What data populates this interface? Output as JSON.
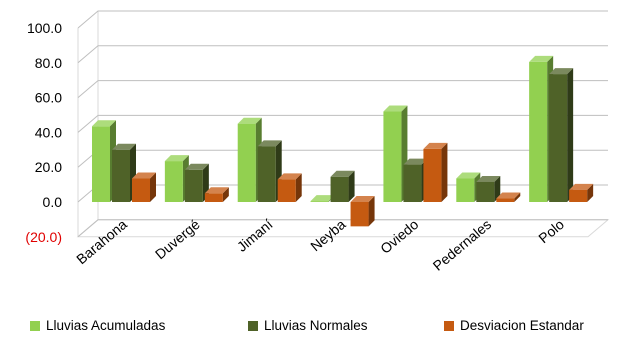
{
  "chart_data": {
    "type": "bar",
    "categories": [
      "Barahona",
      "Duvergé",
      "Jimaní",
      "Neyba",
      "Oviedo",
      "Pedernales",
      "Polo"
    ],
    "series": [
      {
        "name": "Lluvias Acumuladas",
        "values": [
          43.5,
          23.5,
          45.0,
          0.5,
          52.0,
          13.5,
          80.5
        ],
        "color": "#92d050"
      },
      {
        "name": "Lluvias Normales",
        "values": [
          30.0,
          18.5,
          32.0,
          14.5,
          21.5,
          11.5,
          73.5
        ],
        "color": "#4f6228"
      },
      {
        "name": "Desviacion Estandar",
        "values": [
          13.5,
          5.0,
          13.0,
          -14.0,
          30.5,
          2.0,
          7.0
        ],
        "color": "#c55a11"
      }
    ],
    "y_ticks": [
      "100.0",
      "80.0",
      "60.0",
      "40.0",
      "20.0",
      "0.0",
      "(20.0)"
    ],
    "ylim": [
      -20,
      100
    ],
    "grid": true,
    "legend_position": "bottom",
    "title": "",
    "xlabel": "",
    "ylabel": ""
  }
}
